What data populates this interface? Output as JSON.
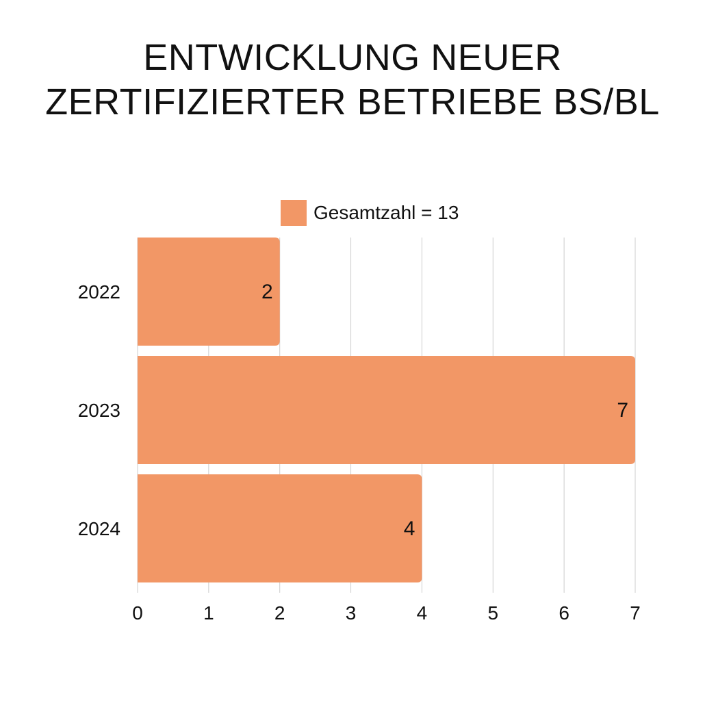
{
  "title": {
    "line1": "ENTWICKLUNG NEUER",
    "line2": "ZERTIFIZIERTER BETRIEBE BS/BL"
  },
  "legend": {
    "label": "Gesamtzahl = 13"
  },
  "colors": {
    "bar": "#F29766",
    "grid": "#CCCCCC",
    "text": "#111111"
  },
  "chart_data": {
    "type": "bar",
    "orientation": "horizontal",
    "categories": [
      "2022",
      "2023",
      "2024"
    ],
    "series": [
      {
        "name": "Gesamtzahl = 13",
        "values": [
          2,
          7,
          4
        ]
      }
    ],
    "xlim": [
      0,
      7
    ],
    "xticks": [
      "0",
      "1",
      "2",
      "3",
      "4",
      "5",
      "6",
      "7"
    ],
    "grid": "vertical",
    "legend_position": "top"
  }
}
